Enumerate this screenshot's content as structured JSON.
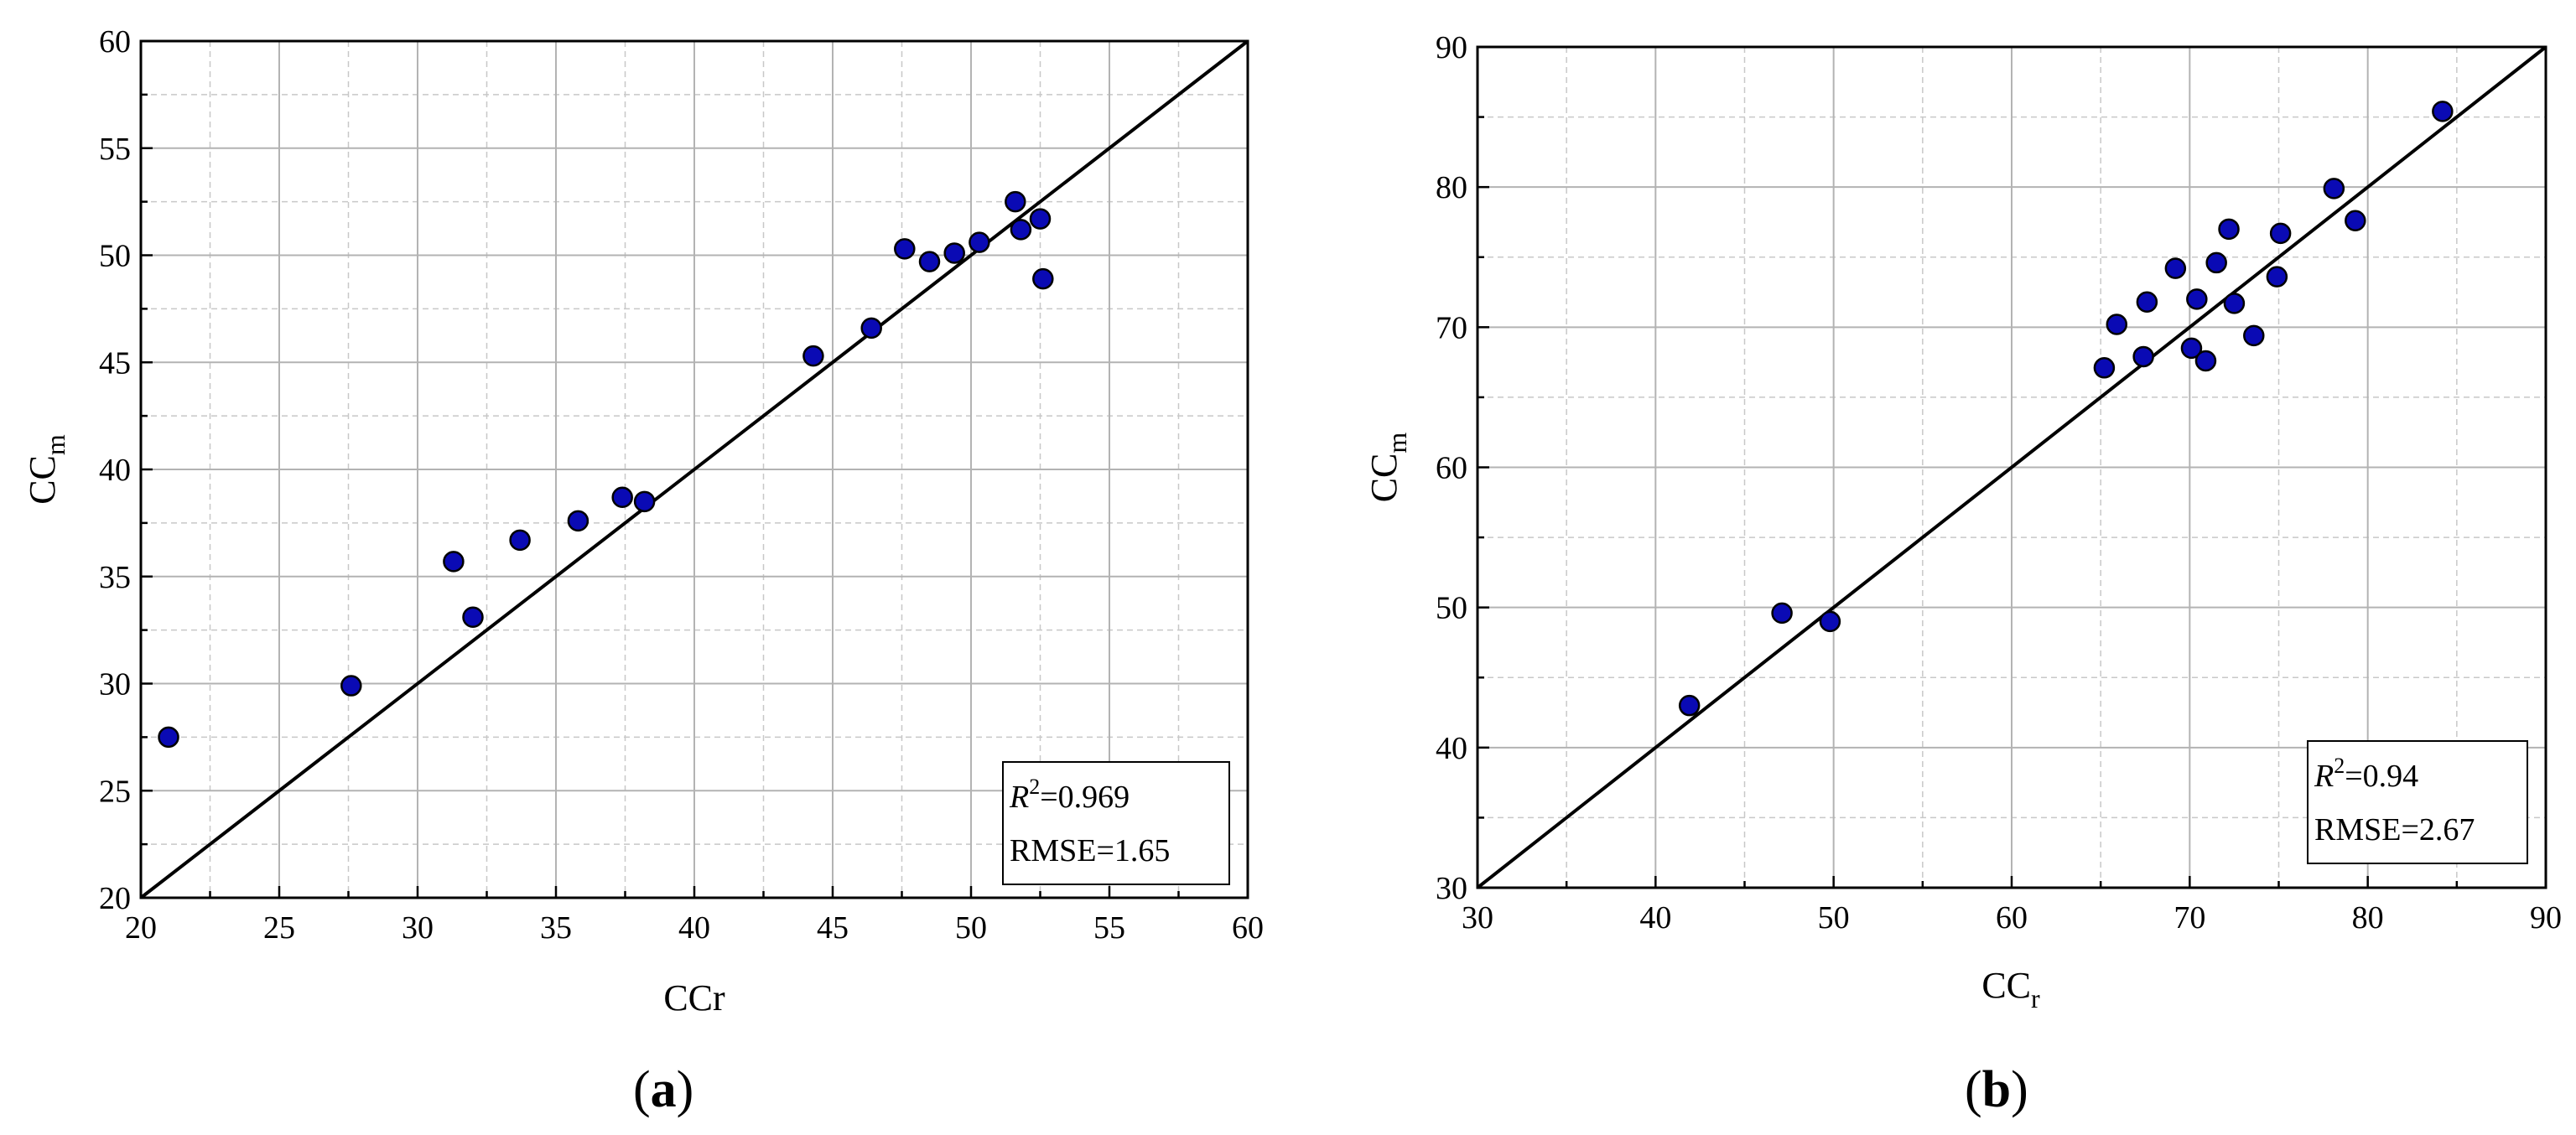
{
  "chart_data": [
    {
      "type": "scatter",
      "panel_label": "a",
      "xlabel": "CCr",
      "ylabel_main": "CC",
      "ylabel_sub": "m",
      "xlim": [
        20,
        60
      ],
      "ylim": [
        20,
        60
      ],
      "xticks": [
        "20",
        "25",
        "30",
        "35",
        "40",
        "45",
        "50",
        "55",
        "60"
      ],
      "yticks": [
        "20",
        "25",
        "30",
        "35",
        "40",
        "45",
        "50",
        "55",
        "60"
      ],
      "grid": true,
      "reference_line": "1:1",
      "marker_color": "#0a0ab4",
      "stats": {
        "r2_symbol": "R",
        "r2_exp": "2",
        "r2_value": "=0.969",
        "rmse": "RMSE=1.65"
      },
      "legend_position": "bottom-right",
      "points": [
        {
          "x": 21.0,
          "y": 27.5
        },
        {
          "x": 27.6,
          "y": 29.9
        },
        {
          "x": 31.3,
          "y": 35.7
        },
        {
          "x": 32.0,
          "y": 33.1
        },
        {
          "x": 33.7,
          "y": 36.7
        },
        {
          "x": 35.8,
          "y": 37.6
        },
        {
          "x": 37.4,
          "y": 38.7
        },
        {
          "x": 38.2,
          "y": 38.5
        },
        {
          "x": 44.3,
          "y": 45.3
        },
        {
          "x": 46.4,
          "y": 46.6
        },
        {
          "x": 47.6,
          "y": 50.3
        },
        {
          "x": 48.5,
          "y": 49.7
        },
        {
          "x": 49.4,
          "y": 50.1
        },
        {
          "x": 50.3,
          "y": 50.6
        },
        {
          "x": 51.6,
          "y": 52.5
        },
        {
          "x": 51.8,
          "y": 51.2
        },
        {
          "x": 52.5,
          "y": 51.7
        },
        {
          "x": 52.6,
          "y": 48.9
        }
      ]
    },
    {
      "type": "scatter",
      "panel_label": "b",
      "xlabel_main": "CC",
      "xlabel_sub": "r",
      "ylabel_main": "CC",
      "ylabel_sub": "m",
      "xlim": [
        30,
        90
      ],
      "ylim": [
        30,
        90
      ],
      "xticks": [
        "30",
        "40",
        "50",
        "60",
        "70",
        "80",
        "90"
      ],
      "yticks": [
        "30",
        "40",
        "50",
        "60",
        "70",
        "80",
        "90"
      ],
      "grid": true,
      "reference_line": "1:1",
      "marker_color": "#0a0ab4",
      "stats": {
        "r2_symbol": "R",
        "r2_exp": "2",
        "r2_value": "=0.94",
        "rmse": "RMSE=2.67"
      },
      "legend_position": "bottom-right",
      "points": [
        {
          "x": 41.9,
          "y": 43.0
        },
        {
          "x": 47.1,
          "y": 49.6
        },
        {
          "x": 49.8,
          "y": 49.0
        },
        {
          "x": 65.2,
          "y": 67.1
        },
        {
          "x": 65.9,
          "y": 70.2
        },
        {
          "x": 67.4,
          "y": 67.9
        },
        {
          "x": 67.6,
          "y": 71.8
        },
        {
          "x": 69.2,
          "y": 74.2
        },
        {
          "x": 70.1,
          "y": 68.5
        },
        {
          "x": 70.4,
          "y": 72.0
        },
        {
          "x": 70.9,
          "y": 67.6
        },
        {
          "x": 71.5,
          "y": 74.6
        },
        {
          "x": 72.2,
          "y": 77.0
        },
        {
          "x": 72.5,
          "y": 71.7
        },
        {
          "x": 73.6,
          "y": 69.4
        },
        {
          "x": 74.9,
          "y": 73.6
        },
        {
          "x": 75.1,
          "y": 76.7
        },
        {
          "x": 78.1,
          "y": 79.9
        },
        {
          "x": 79.3,
          "y": 77.6
        },
        {
          "x": 84.2,
          "y": 85.4
        }
      ]
    }
  ]
}
